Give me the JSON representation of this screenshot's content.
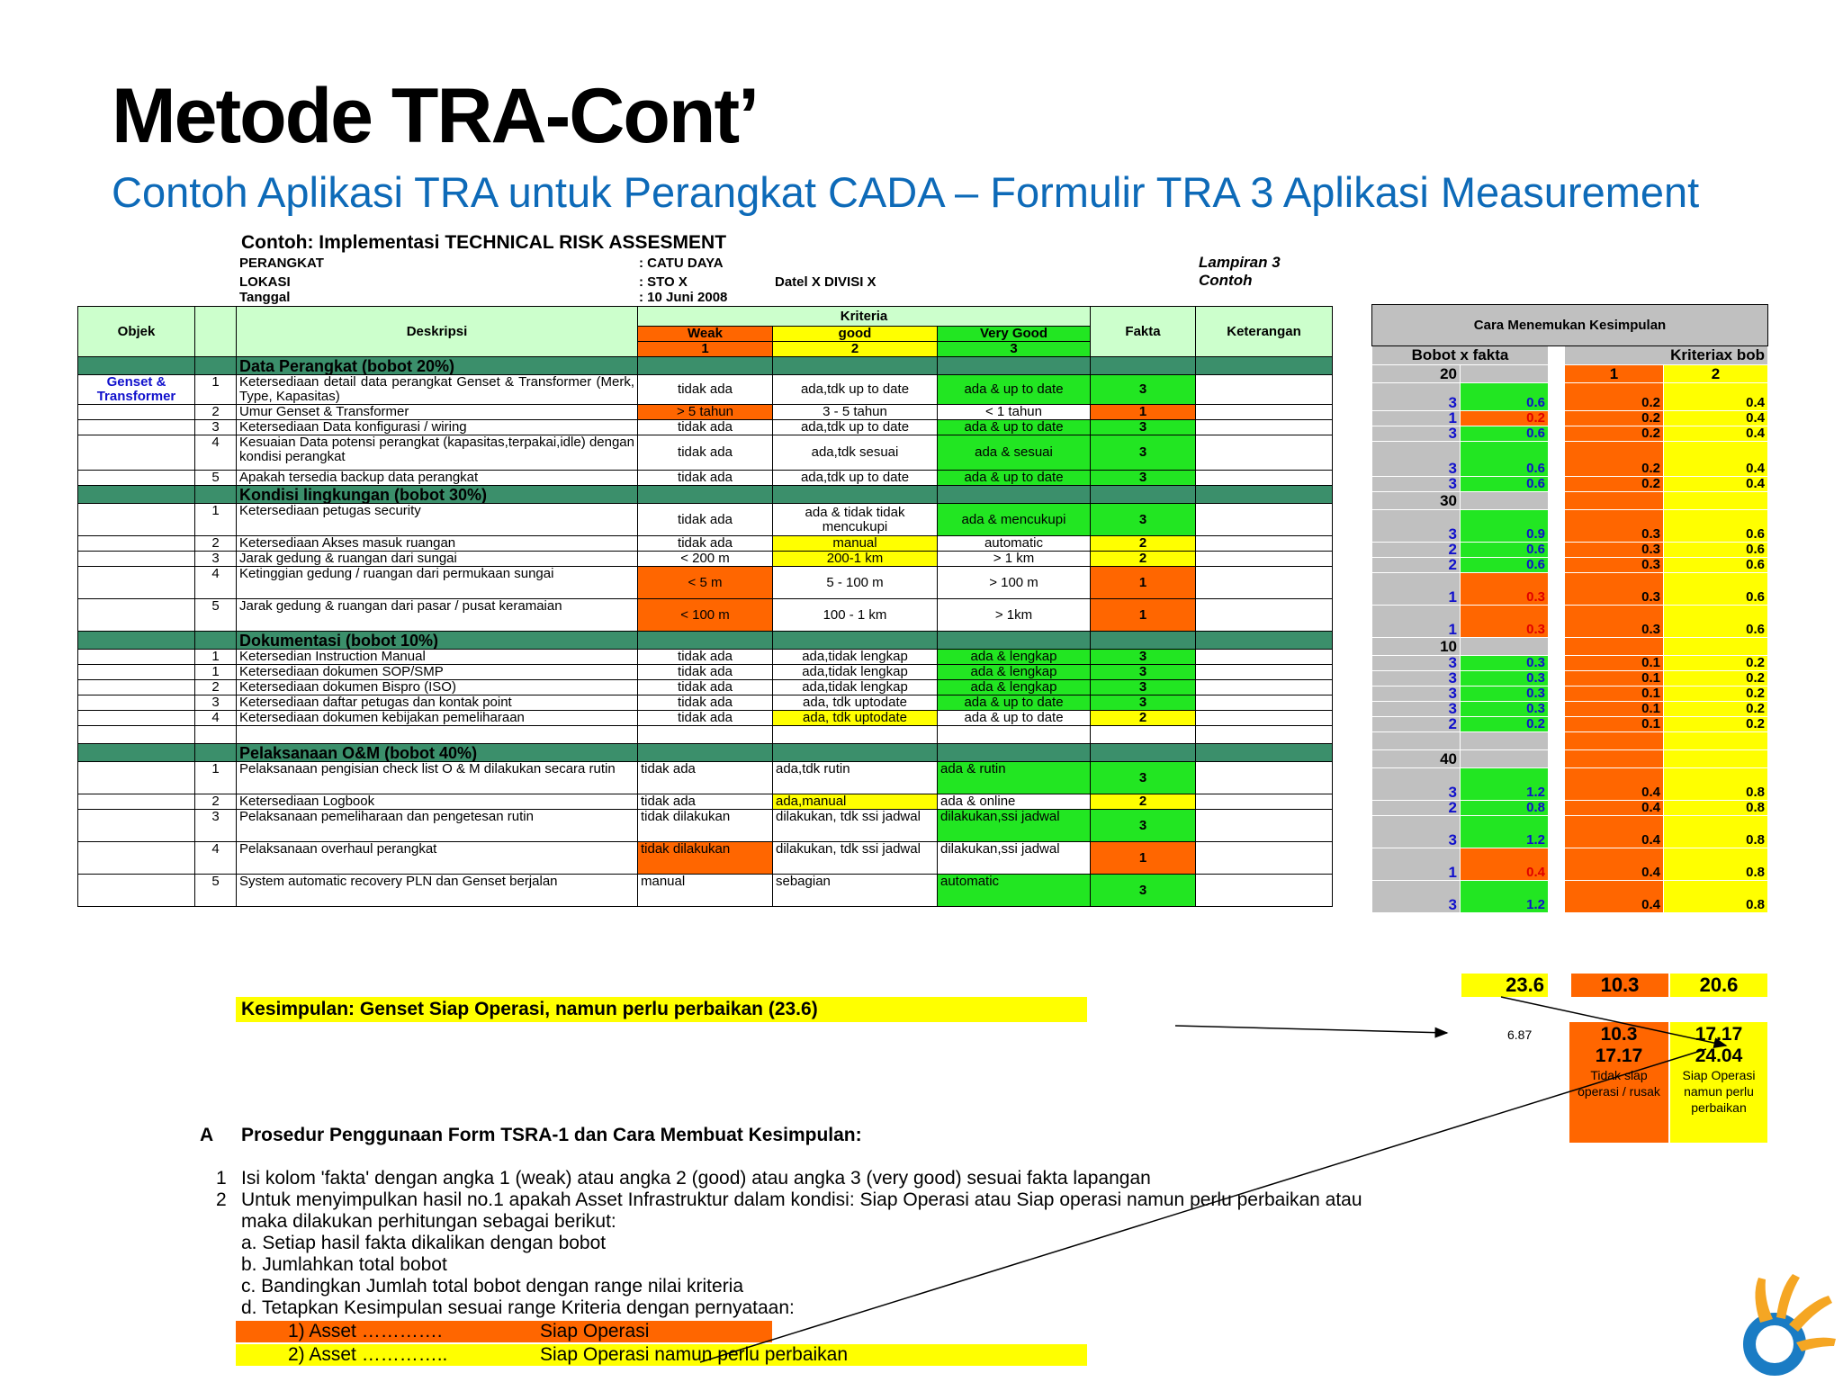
{
  "title": "Metode TRA-Cont’",
  "subtitle": "Contoh Aplikasi TRA untuk Perangkat CADA – Formulir TRA 3 Aplikasi Measurement",
  "doc": {
    "title": "Contoh: Implementasi TECHNICAL  RISK ASSESMENT",
    "perangkat_label": "PERANGKAT",
    "perangkat_value": ":  CATU DAYA",
    "lokasi_label": "LOKASI",
    "lokasi_value": ":  STO X",
    "lokasi_extra": "Datel X DIVISI X",
    "tanggal_label": "Tanggal",
    "tanggal_value": ":  10 Juni 2008",
    "lampiran": "Lampiran 3",
    "contoh": "Contoh"
  },
  "table": {
    "headers": {
      "objek": "Objek",
      "deskripsi": "Deskripsi",
      "kriteria": "Kriteria",
      "weak": "Weak",
      "good": "good",
      "very_good": "Very Good",
      "n1": "1",
      "n2": "2",
      "n3": "3",
      "fakta": "Fakta",
      "keterangan": "Keterangan"
    },
    "objek_value": "Genset & Transformer",
    "sections": [
      {
        "title": "Data Perangkat (bobot 20%)",
        "rows": [
          {
            "no": "1",
            "desc": "Ketersediaan detail data perangkat Genset & Transformer (Merk, Type, Kapasitas)",
            "w": "tidak ada",
            "g": "ada,tdk up to date",
            "v": "ada & up to date",
            "f": "3"
          },
          {
            "no": "2",
            "desc": "Umur Genset & Transformer",
            "w": "> 5 tahun",
            "g": "3 - 5 tahun",
            "v": "< 1 tahun",
            "f": "1"
          },
          {
            "no": "3",
            "desc": "Ketersediaan Data konfigurasi / wiring",
            "w": "tidak ada",
            "g": "ada,tdk up to date",
            "v": "ada & up to date",
            "f": "3"
          },
          {
            "no": "4",
            "desc": "Kesuaian Data potensi perangkat (kapasitas,terpakai,idle) dengan kondisi perangkat",
            "w": "tidak ada",
            "g": "ada,tdk sesuai",
            "v": "ada & sesuai",
            "f": "3"
          },
          {
            "no": "5",
            "desc": "Apakah tersedia backup data perangkat",
            "w": "tidak ada",
            "g": "ada,tdk up to date",
            "v": "ada & up to date",
            "f": "3"
          }
        ]
      },
      {
        "title": "Kondisi lingkungan (bobot 30%)",
        "rows": [
          {
            "no": "1",
            "desc": "Ketersediaan petugas security",
            "w": "tidak ada",
            "g": "ada & tidak tidak mencukupi",
            "v": "ada & mencukupi",
            "f": "3"
          },
          {
            "no": "2",
            "desc": "Ketersediaan Akses masuk ruangan",
            "w": "tidak ada",
            "g": "manual",
            "v": "automatic",
            "f": "2"
          },
          {
            "no": "3",
            "desc": "Jarak gedung & ruangan dari sungai",
            "w": "< 200 m",
            "g": "200-1 km",
            "v": "> 1 km",
            "f": "2"
          },
          {
            "no": "4",
            "desc": "Ketinggian gedung / ruangan dari permukaan sungai",
            "w": "< 5 m",
            "g": "5 - 100 m",
            "v": "> 100 m",
            "f": "1"
          },
          {
            "no": "5",
            "desc": "Jarak gedung & ruangan dari pasar / pusat keramaian",
            "w": "< 100 m",
            "g": "100 - 1 km",
            "v": "> 1km",
            "f": "1"
          }
        ]
      },
      {
        "title": "Dokumentasi (bobot 10%)",
        "rows": [
          {
            "no": "1",
            "desc": "Ketersedian Instruction Manual",
            "w": "tidak ada",
            "g": "ada,tidak lengkap",
            "v": "ada & lengkap",
            "f": "3"
          },
          {
            "no": "1",
            "desc": "Ketersediaan dokumen SOP/SMP",
            "w": "tidak ada",
            "g": "ada,tidak lengkap",
            "v": "ada & lengkap",
            "f": "3"
          },
          {
            "no": "2",
            "desc": "Ketersediaan dokumen Bispro (ISO)",
            "w": "tidak ada",
            "g": "ada,tidak lengkap",
            "v": "ada & lengkap",
            "f": "3"
          },
          {
            "no": "3",
            "desc": "Ketersediaan daftar petugas dan kontak point",
            "w": "tidak ada",
            "g": "ada, tdk uptodate",
            "v": "ada & up to date",
            "f": "3"
          },
          {
            "no": "4",
            "desc": "Ketersediaan dokumen kebijakan pemeliharaan",
            "w": "tidak ada",
            "g": "ada, tdk uptodate",
            "v": "ada & up to date",
            "f": "2"
          }
        ]
      },
      {
        "title": "Pelaksanaan O&M (bobot 40%)",
        "rows": [
          {
            "no": "1",
            "desc": "Pelaksanaan pengisian check list O & M dilakukan secara rutin",
            "w": "tidak ada",
            "g": "ada,tdk rutin",
            "v": "ada & rutin",
            "f": "3"
          },
          {
            "no": "2",
            "desc": "Ketersediaan Logbook",
            "w": "tidak ada",
            "g": "ada,manual",
            "v": "ada & online",
            "f": "2"
          },
          {
            "no": "3",
            "desc": "Pelaksanaan pemeliharaan dan pengetesan rutin",
            "w": "tidak dilakukan",
            "g": "dilakukan, tdk ssi jadwal",
            "v": "dilakukan,ssi jadwal",
            "f": "3"
          },
          {
            "no": "4",
            "desc": "Pelaksanaan overhaul perangkat",
            "w": "tidak dilakukan",
            "g": "dilakukan, tdk ssi jadwal",
            "v": "dilakukan,ssi jadwal",
            "f": "1"
          },
          {
            "no": "5",
            "desc": "System automatic recovery PLN dan Genset berjalan",
            "w": "manual",
            "g": "sebagian",
            "v": "automatic",
            "f": "3"
          }
        ]
      }
    ]
  },
  "side": {
    "title": "Cara Menemukan Kesimpulan",
    "col_bobot": "Bobot x fakta",
    "col_kriteria": "Kriteriax bob",
    "k1": "1",
    "k2": "2",
    "bobot": [
      "20",
      "30",
      "10",
      "40"
    ],
    "rows": [
      [
        {
          "f": "3",
          "v": "0.6",
          "a": "0.2",
          "b": "0.4"
        },
        {
          "f": "1",
          "v": "0.2",
          "a": "0.2",
          "b": "0.4"
        },
        {
          "f": "3",
          "v": "0.6",
          "a": "0.2",
          "b": "0.4"
        },
        {
          "f": "3",
          "v": "0.6",
          "a": "0.2",
          "b": "0.4"
        },
        {
          "f": "3",
          "v": "0.6",
          "a": "0.2",
          "b": "0.4"
        }
      ],
      [
        {
          "f": "3",
          "v": "0.9",
          "a": "0.3",
          "b": "0.6"
        },
        {
          "f": "2",
          "v": "0.6",
          "a": "0.3",
          "b": "0.6"
        },
        {
          "f": "2",
          "v": "0.6",
          "a": "0.3",
          "b": "0.6"
        },
        {
          "f": "1",
          "v": "0.3",
          "a": "0.3",
          "b": "0.6"
        },
        {
          "f": "1",
          "v": "0.3",
          "a": "0.3",
          "b": "0.6"
        }
      ],
      [
        {
          "f": "3",
          "v": "0.3",
          "a": "0.1",
          "b": "0.2"
        },
        {
          "f": "3",
          "v": "0.3",
          "a": "0.1",
          "b": "0.2"
        },
        {
          "f": "3",
          "v": "0.3",
          "a": "0.1",
          "b": "0.2"
        },
        {
          "f": "3",
          "v": "0.3",
          "a": "0.1",
          "b": "0.2"
        },
        {
          "f": "2",
          "v": "0.2",
          "a": "0.1",
          "b": "0.2"
        }
      ],
      [
        {
          "f": "3",
          "v": "1.2",
          "a": "0.4",
          "b": "0.8"
        },
        {
          "f": "2",
          "v": "0.8",
          "a": "0.4",
          "b": "0.8"
        },
        {
          "f": "3",
          "v": "1.2",
          "a": "0.4",
          "b": "0.8"
        },
        {
          "f": "1",
          "v": "0.4",
          "a": "0.4",
          "b": "0.8"
        },
        {
          "f": "3",
          "v": "1.2",
          "a": "0.4",
          "b": "0.8"
        }
      ]
    ],
    "total": "23.6",
    "total_a": "10.3",
    "total_b": "20.6",
    "small_val": "6.87",
    "range_a_1": "10.3",
    "range_a_2": "17.17",
    "range_a_label": "Tidak siap operasi / rusak",
    "range_b_1": "17.17",
    "range_b_2": "24.04",
    "range_b_label": "Siap Operasi namun perlu perbaikan"
  },
  "kesimpulan": "Kesimpulan:   Genset Siap Operasi, namun perlu perbaikan (23.6)",
  "procedure": {
    "letter": "A",
    "heading": "Prosedur Penggunaan Form TSRA-1 dan Cara Membuat Kesimpulan:",
    "n1": "1",
    "item1": "Isi kolom 'fakta'  dengan angka 1 (weak) atau angka 2 (good) atau angka 3 (very good) sesuai fakta lapangan",
    "n2": "2",
    "item2": "Untuk menyimpulkan hasil no.1 apakah Asset Infrastruktur dalam kondisi: Siap Operasi atau Siap operasi namun perlu perbaikan atau",
    "item2b": "maka dilakukan perhitungan sebagai berikut:",
    "a": "a.   Setiap hasil fakta dikalikan dengan bobot",
    "b": "b.   Jumlahkan total bobot",
    "c": "c.  Bandingkan Jumlah total bobot dengan range nilai kriteria",
    "d": "d.  Tetapkan Kesimpulan sesuai range Kriteria dengan pernyataan:",
    "opt1_label": "1)  Asset ………….",
    "opt1_value": "Siap Operasi",
    "opt2_label": "2) Asset …………..",
    "opt2_value": "Siap Operasi namun perlu perbaikan"
  },
  "colors": {
    "green": "#22e622",
    "yellow": "#ffff00",
    "orange": "#ff6600",
    "section": "#3b8f6b",
    "subtitle": "#0d6ab8"
  }
}
